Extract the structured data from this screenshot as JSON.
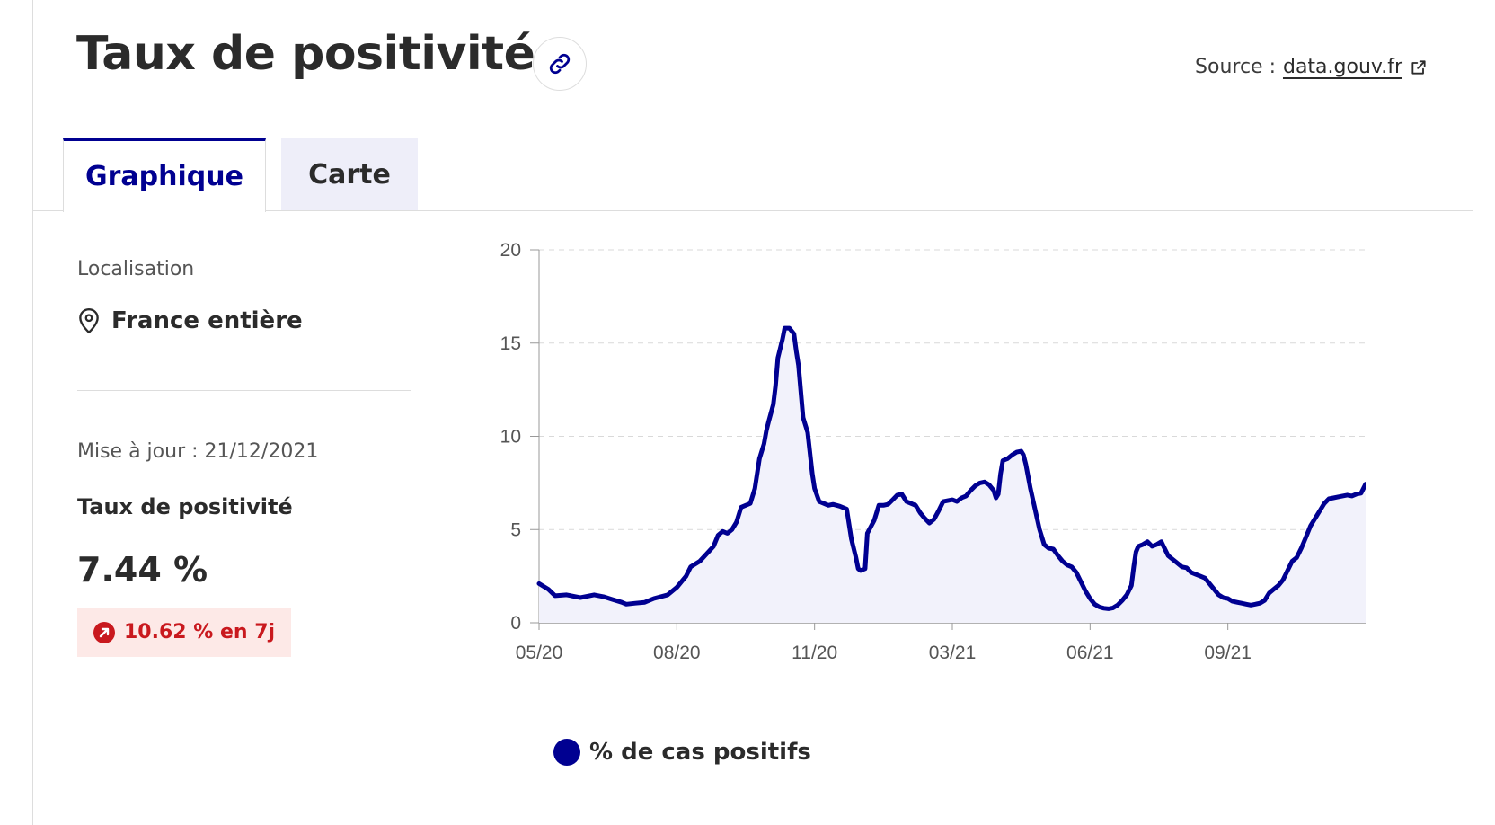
{
  "header": {
    "title": "Taux de positivité",
    "source_label": "Source :",
    "source_link": "data.gouv.fr"
  },
  "tabs": [
    {
      "label": "Graphique",
      "active": true
    },
    {
      "label": "Carte",
      "active": false
    }
  ],
  "sidebar": {
    "location_label": "Localisation",
    "location_value": "France entière",
    "updated": "Mise à jour : 21/12/2021",
    "metric_label": "Taux de positivité",
    "metric_value": "7.44 %",
    "trend": "10.62 % en 7j"
  },
  "colors": {
    "accent": "#000091",
    "trend_text": "#c9191e",
    "trend_bg": "#fde9e7"
  },
  "icons": {
    "link": "link-icon",
    "external": "external-link-icon",
    "location": "map-pin-icon",
    "trend": "arrow-up-right-icon"
  },
  "chart_data": {
    "type": "area",
    "title": "",
    "xlabel": "",
    "ylabel": "",
    "ylim": [
      0,
      20
    ],
    "yticks": [
      0,
      5,
      10,
      15,
      20
    ],
    "x_ticks": [
      {
        "label": "05/20",
        "month": 0
      },
      {
        "label": "08/20",
        "month": 3
      },
      {
        "label": "11/20",
        "month": 6
      },
      {
        "label": "03/21",
        "month": 9
      },
      {
        "label": "06/21",
        "month": 12
      },
      {
        "label": "09/21",
        "month": 15
      }
    ],
    "xlim_months": [
      0,
      18
    ],
    "grid": true,
    "legend": "bottom-left",
    "series": [
      {
        "name": "% de cas positifs",
        "points": [
          [
            0.0,
            2.1
          ],
          [
            0.2,
            1.8
          ],
          [
            0.35,
            1.45
          ],
          [
            0.6,
            1.5
          ],
          [
            0.9,
            1.35
          ],
          [
            1.2,
            1.5
          ],
          [
            1.4,
            1.4
          ],
          [
            1.6,
            1.25
          ],
          [
            1.8,
            1.1
          ],
          [
            1.9,
            1.0
          ],
          [
            2.1,
            1.05
          ],
          [
            2.3,
            1.1
          ],
          [
            2.5,
            1.3
          ],
          [
            2.8,
            1.5
          ],
          [
            3.0,
            1.9
          ],
          [
            3.2,
            2.5
          ],
          [
            3.3,
            3.0
          ],
          [
            3.5,
            3.3
          ],
          [
            3.65,
            3.7
          ],
          [
            3.8,
            4.1
          ],
          [
            3.9,
            4.7
          ],
          [
            4.0,
            4.9
          ],
          [
            4.1,
            4.8
          ],
          [
            4.2,
            5.0
          ],
          [
            4.3,
            5.4
          ],
          [
            4.4,
            6.2
          ],
          [
            4.5,
            6.3
          ],
          [
            4.6,
            6.4
          ],
          [
            4.7,
            7.2
          ],
          [
            4.8,
            8.8
          ],
          [
            4.9,
            9.6
          ],
          [
            4.95,
            10.3
          ],
          [
            5.0,
            10.8
          ],
          [
            5.1,
            11.7
          ],
          [
            5.15,
            12.7
          ],
          [
            5.2,
            14.2
          ],
          [
            5.3,
            15.2
          ],
          [
            5.35,
            15.8
          ],
          [
            5.45,
            15.8
          ],
          [
            5.55,
            15.5
          ],
          [
            5.6,
            14.6
          ],
          [
            5.65,
            13.8
          ],
          [
            5.75,
            11.0
          ],
          [
            5.85,
            10.2
          ],
          [
            5.95,
            8.0
          ],
          [
            6.0,
            7.2
          ],
          [
            6.1,
            6.5
          ],
          [
            6.3,
            6.3
          ],
          [
            6.4,
            6.35
          ],
          [
            6.55,
            6.25
          ],
          [
            6.7,
            6.1
          ],
          [
            6.8,
            4.5
          ],
          [
            6.9,
            3.5
          ],
          [
            6.95,
            2.9
          ],
          [
            7.0,
            2.8
          ],
          [
            7.1,
            2.9
          ],
          [
            7.15,
            4.8
          ],
          [
            7.3,
            5.5
          ],
          [
            7.4,
            6.3
          ],
          [
            7.5,
            6.3
          ],
          [
            7.6,
            6.35
          ],
          [
            7.7,
            6.6
          ],
          [
            7.8,
            6.85
          ],
          [
            7.9,
            6.9
          ],
          [
            8.0,
            6.5
          ],
          [
            8.1,
            6.4
          ],
          [
            8.2,
            6.3
          ],
          [
            8.3,
            5.9
          ],
          [
            8.4,
            5.6
          ],
          [
            8.5,
            5.35
          ],
          [
            8.6,
            5.55
          ],
          [
            8.7,
            6.0
          ],
          [
            8.8,
            6.5
          ],
          [
            8.9,
            6.55
          ],
          [
            9.0,
            6.6
          ],
          [
            9.1,
            6.5
          ],
          [
            9.2,
            6.7
          ],
          [
            9.3,
            6.8
          ],
          [
            9.4,
            7.1
          ],
          [
            9.5,
            7.35
          ],
          [
            9.6,
            7.5
          ],
          [
            9.7,
            7.55
          ],
          [
            9.8,
            7.4
          ],
          [
            9.9,
            7.1
          ],
          [
            9.95,
            6.7
          ],
          [
            10.0,
            6.9
          ],
          [
            10.05,
            8.0
          ],
          [
            10.1,
            8.7
          ],
          [
            10.2,
            8.8
          ],
          [
            10.3,
            9.0
          ],
          [
            10.4,
            9.15
          ],
          [
            10.5,
            9.2
          ],
          [
            10.55,
            9.0
          ],
          [
            10.6,
            8.5
          ],
          [
            10.7,
            7.2
          ],
          [
            10.8,
            6.1
          ],
          [
            10.9,
            5.0
          ],
          [
            11.0,
            4.2
          ],
          [
            11.1,
            4.0
          ],
          [
            11.2,
            3.95
          ],
          [
            11.3,
            3.6
          ],
          [
            11.4,
            3.3
          ],
          [
            11.5,
            3.1
          ],
          [
            11.6,
            3.0
          ],
          [
            11.7,
            2.7
          ],
          [
            11.8,
            2.2
          ],
          [
            11.9,
            1.7
          ],
          [
            12.0,
            1.3
          ],
          [
            12.1,
            1.0
          ],
          [
            12.2,
            0.85
          ],
          [
            12.3,
            0.78
          ],
          [
            12.4,
            0.75
          ],
          [
            12.5,
            0.8
          ],
          [
            12.6,
            0.95
          ],
          [
            12.7,
            1.2
          ],
          [
            12.8,
            1.5
          ],
          [
            12.9,
            2.0
          ],
          [
            12.95,
            3.0
          ],
          [
            13.0,
            3.8
          ],
          [
            13.05,
            4.1
          ],
          [
            13.15,
            4.2
          ],
          [
            13.25,
            4.35
          ],
          [
            13.35,
            4.1
          ],
          [
            13.45,
            4.2
          ],
          [
            13.55,
            4.35
          ],
          [
            13.6,
            4.1
          ],
          [
            13.7,
            3.6
          ],
          [
            13.8,
            3.4
          ],
          [
            13.9,
            3.2
          ],
          [
            14.0,
            3.0
          ],
          [
            14.1,
            2.95
          ],
          [
            14.2,
            2.7
          ],
          [
            14.3,
            2.6
          ],
          [
            14.4,
            2.5
          ],
          [
            14.5,
            2.4
          ],
          [
            14.6,
            2.1
          ],
          [
            14.7,
            1.8
          ],
          [
            14.8,
            1.5
          ],
          [
            14.9,
            1.35
          ],
          [
            15.0,
            1.3
          ],
          [
            15.1,
            1.15
          ],
          [
            15.2,
            1.1
          ],
          [
            15.3,
            1.05
          ],
          [
            15.4,
            1.0
          ],
          [
            15.5,
            0.95
          ],
          [
            15.6,
            1.0
          ],
          [
            15.7,
            1.05
          ],
          [
            15.8,
            1.2
          ],
          [
            15.9,
            1.6
          ],
          [
            16.0,
            1.8
          ],
          [
            16.1,
            2.0
          ],
          [
            16.2,
            2.3
          ],
          [
            16.3,
            2.8
          ],
          [
            16.4,
            3.3
          ],
          [
            16.5,
            3.5
          ],
          [
            16.6,
            4.0
          ],
          [
            16.7,
            4.6
          ],
          [
            16.8,
            5.2
          ],
          [
            16.9,
            5.6
          ],
          [
            17.0,
            6.0
          ],
          [
            17.1,
            6.4
          ],
          [
            17.2,
            6.65
          ],
          [
            17.3,
            6.7
          ],
          [
            17.4,
            6.75
          ],
          [
            17.5,
            6.8
          ],
          [
            17.6,
            6.85
          ],
          [
            17.7,
            6.8
          ],
          [
            17.8,
            6.9
          ],
          [
            17.9,
            6.95
          ],
          [
            18.0,
            7.44
          ]
        ]
      }
    ]
  }
}
